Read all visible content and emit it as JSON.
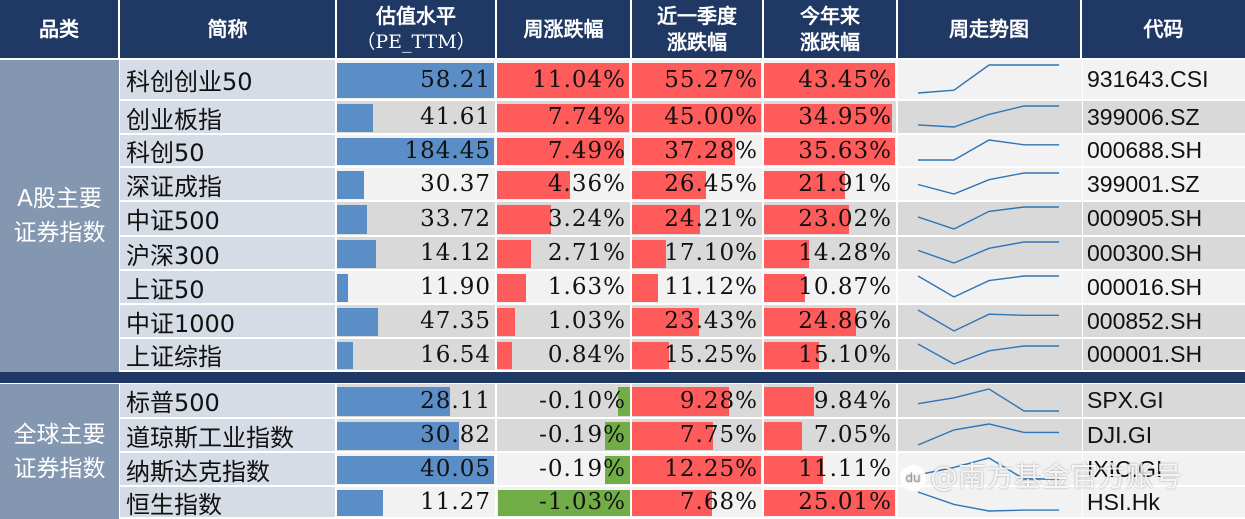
{
  "header": {
    "category": "品类",
    "name": "简称",
    "pe_line1": "估值水平",
    "pe_line2": "（PE_TTM）",
    "weekly": "周涨跌幅",
    "quarter_line1": "近一季度",
    "quarter_line2": "涨跌幅",
    "ytd_line1": "今年来",
    "ytd_line2": "涨跌幅",
    "trend": "周走势图",
    "code": "代码"
  },
  "colors": {
    "header_bg": "#1f3864",
    "category_bg": "#8497b0",
    "name_bg": "#d6dce5",
    "pe_bar": "#5b8ec6",
    "up_bar": "#ff5b5b",
    "down_bar": "#70ad47",
    "sparkline": "#2e75b6"
  },
  "groups": [
    {
      "label_line1": "A股主要",
      "label_line2": "证券指数",
      "rows": [
        {
          "name": "科创创业50",
          "pe": "58.21",
          "pe_bar": 1.0,
          "weekly": "11.04%",
          "weekly_bar": 1.0,
          "weekly_dir": "up",
          "quarter": "55.27%",
          "quarter_bar": 1.0,
          "ytd": "43.45%",
          "ytd_bar": 1.0,
          "spark": [
            0.0,
            0.1,
            1.0,
            1.0,
            1.0
          ],
          "code": "931643.CSI",
          "bg": "l"
        },
        {
          "name": "创业板指",
          "pe": "41.61",
          "pe_bar": 0.23,
          "weekly": "7.74%",
          "weekly_bar": 1.0,
          "weekly_dir": "up",
          "quarter": "45.00%",
          "quarter_bar": 1.0,
          "ytd": "34.95%",
          "ytd_bar": 0.98,
          "spark": [
            0.1,
            0.0,
            0.6,
            1.0,
            1.0
          ],
          "code": "399006.SZ",
          "bg": "g"
        },
        {
          "name": "科创50",
          "pe": "184.45",
          "pe_bar": 1.0,
          "weekly": "7.49%",
          "weekly_bar": 0.96,
          "weekly_dir": "up",
          "quarter": "37.28%",
          "quarter_bar": 0.8,
          "ytd": "35.63%",
          "ytd_bar": 1.0,
          "spark": [
            0.0,
            0.0,
            1.0,
            0.76,
            0.76
          ],
          "code": "000688.SH",
          "bg": "l"
        },
        {
          "name": "深证成指",
          "pe": "30.37",
          "pe_bar": 0.17,
          "weekly": "4.36%",
          "weekly_bar": 0.55,
          "weekly_dir": "up",
          "quarter": "26.45%",
          "quarter_bar": 0.57,
          "ytd": "21.91%",
          "ytd_bar": 0.62,
          "spark": [
            0.45,
            0.0,
            0.68,
            1.0,
            1.0
          ],
          "code": "399001.SZ",
          "bg": "l"
        },
        {
          "name": "中证500",
          "pe": "33.72",
          "pe_bar": 0.19,
          "weekly": "3.24%",
          "weekly_bar": 0.41,
          "weekly_dir": "up",
          "quarter": "24.21%",
          "quarter_bar": 0.53,
          "ytd": "23.02%",
          "ytd_bar": 0.65,
          "spark": [
            0.55,
            0.0,
            0.8,
            1.0,
            1.0
          ],
          "code": "000905.SH",
          "bg": "g"
        },
        {
          "name": "沪深300",
          "pe": "14.12",
          "pe_bar": 0.25,
          "weekly": "2.71%",
          "weekly_bar": 0.26,
          "weekly_dir": "up",
          "quarter": "17.10%",
          "quarter_bar": 0.26,
          "ytd": "14.28%",
          "ytd_bar": 0.34,
          "spark": [
            0.6,
            0.0,
            0.7,
            1.0,
            1.0
          ],
          "code": "000300.SH",
          "bg": "g"
        },
        {
          "name": "上证50",
          "pe": "11.90",
          "pe_bar": 0.07,
          "weekly": "1.63%",
          "weekly_bar": 0.22,
          "weekly_dir": "up",
          "quarter": "11.12%",
          "quarter_bar": 0.2,
          "ytd": "10.87%",
          "ytd_bar": 0.31,
          "spark": [
            1.0,
            0.0,
            0.78,
            1.0,
            1.0
          ],
          "code": "000016.SH",
          "bg": "l"
        },
        {
          "name": "中证1000",
          "pe": "47.35",
          "pe_bar": 0.26,
          "weekly": "1.03%",
          "weekly_bar": 0.14,
          "weekly_dir": "up",
          "quarter": "23.43%",
          "quarter_bar": 0.52,
          "ytd": "24.86%",
          "ytd_bar": 0.7,
          "spark": [
            1.0,
            0.0,
            0.8,
            0.75,
            0.75
          ],
          "code": "000852.SH",
          "bg": "g"
        },
        {
          "name": "上证综指",
          "pe": "16.54",
          "pe_bar": 0.1,
          "weekly": "0.84%",
          "weekly_bar": 0.11,
          "weekly_dir": "up",
          "quarter": "15.25%",
          "quarter_bar": 0.29,
          "ytd": "15.10%",
          "ytd_bar": 0.42,
          "spark": [
            1.0,
            0.0,
            0.66,
            0.9,
            0.9
          ],
          "code": "000001.SH",
          "bg": "g"
        }
      ]
    },
    {
      "label_line1": "全球主要",
      "label_line2": "证券指数",
      "rows": [
        {
          "name": "标普500",
          "pe": "28.11",
          "pe_bar": 0.72,
          "weekly": "-0.10%",
          "weekly_bar": 0.09,
          "weekly_dir": "down",
          "quarter": "9.28%",
          "quarter_bar": 0.75,
          "ytd": "9.84%",
          "ytd_bar": 0.38,
          "spark": [
            0.33,
            0.6,
            1.0,
            0.0,
            0.0
          ],
          "code": "SPX.GI",
          "bg": "g"
        },
        {
          "name": "道琼斯工业指数",
          "pe": "30.82",
          "pe_bar": 0.78,
          "weekly": "-0.19%",
          "weekly_bar": 0.19,
          "weekly_dir": "down",
          "quarter": "7.75%",
          "quarter_bar": 0.63,
          "ytd": "7.05%",
          "ytd_bar": 0.29,
          "spark": [
            0.0,
            0.72,
            1.0,
            0.6,
            0.6
          ],
          "code": "DJI.GI",
          "bg": "g"
        },
        {
          "name": "纳斯达克指数",
          "pe": "40.05",
          "pe_bar": 1.0,
          "weekly": "-0.19%",
          "weekly_bar": 0.19,
          "weekly_dir": "down",
          "quarter": "12.25%",
          "quarter_bar": 1.0,
          "ytd": "11.11%",
          "ytd_bar": 0.45,
          "spark": [
            0.2,
            0.55,
            1.0,
            0.0,
            0.0
          ],
          "code": "IXIC.GI",
          "bg": "l"
        },
        {
          "name": "恒生指数",
          "pe": "11.27",
          "pe_bar": 0.29,
          "weekly": "-1.03%",
          "weekly_bar": 1.0,
          "weekly_dir": "down",
          "quarter": "7.68%",
          "quarter_bar": 0.62,
          "ytd": "25.01%",
          "ytd_bar": 1.0,
          "spark": [
            1.0,
            0.35,
            0.0,
            0.05,
            0.05
          ],
          "code": "HSI.Hk",
          "bg": "l"
        }
      ]
    }
  ],
  "watermark": "@南方基金官方账号",
  "watermark_icon": "du"
}
